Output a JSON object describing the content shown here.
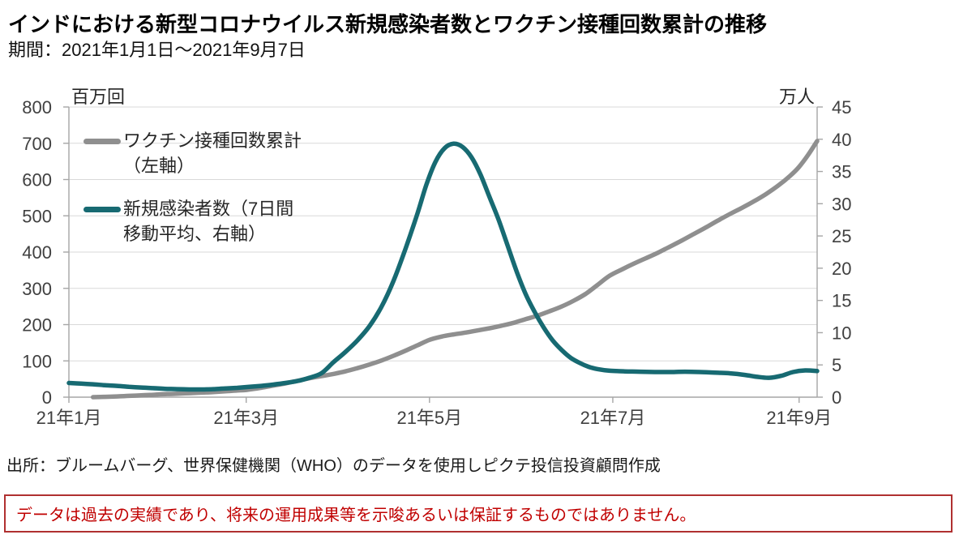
{
  "page": {
    "title": "インドにおける新型コロナウイルス新規感染者数とワクチン接種回数累計の推移",
    "subtitle": "期間：2021年1月1日～2021年9月7日",
    "source": "出所：ブルームバーグ、世界保健機関（WHO）のデータを使用しピクテ投信投資顧問作成",
    "disclaimer": "データは過去の実績であり、将来の運用成果等を示唆あるいは保証するものではありません。"
  },
  "colors": {
    "vaccine_line": "#8f8f8f",
    "cases_line": "#176a72",
    "gridline": "#d9d9d9",
    "axis_line": "#a6a6a6",
    "tick_label": "#404040",
    "disclaimer_red": "#c00000",
    "disclaimer_border": "#b03030"
  },
  "chart_data": {
    "type": "line",
    "title": "インドにおける新型コロナウイルス新規感染者数とワクチン接種回数累計の推移",
    "period": "2021-01-01 〜 2021-09-07",
    "x_unit": "days since 2021-01-01",
    "x_range_days": [
      0,
      249
    ],
    "x_tick_days": [
      0,
      59,
      120,
      181,
      243
    ],
    "x_tick_labels": [
      "21年1月",
      "21年3月",
      "21年5月",
      "21年7月",
      "21年9月"
    ],
    "grid": true,
    "legend_position": "top-left-inside",
    "left_axis": {
      "label": "百万回",
      "min": 0,
      "max": 800,
      "tick_step": 100,
      "ticks": [
        0,
        100,
        200,
        300,
        400,
        500,
        600,
        700,
        800
      ]
    },
    "right_axis": {
      "label": "万人",
      "min": 0,
      "max": 45,
      "tick_step": 5,
      "ticks": [
        0,
        5,
        10,
        15,
        20,
        25,
        30,
        35,
        40,
        45
      ]
    },
    "series": [
      {
        "name": "ワクチン接種回数累計（左軸）",
        "legend_label": "ワクチン接種回数累計\n（左軸）",
        "axis": "left",
        "unit": "百万回",
        "color": "#8f8f8f",
        "points": [
          [
            8,
            0
          ],
          [
            12,
            1
          ],
          [
            16,
            2
          ],
          [
            20,
            3.5
          ],
          [
            24,
            5
          ],
          [
            28,
            6.5
          ],
          [
            31,
            8
          ],
          [
            36,
            9.5
          ],
          [
            40,
            11
          ],
          [
            44,
            12.5
          ],
          [
            48,
            14
          ],
          [
            52,
            16
          ],
          [
            56,
            18.5
          ],
          [
            59,
            20
          ],
          [
            64,
            26
          ],
          [
            68,
            32
          ],
          [
            72,
            38
          ],
          [
            76,
            45
          ],
          [
            80,
            52
          ],
          [
            84,
            58
          ],
          [
            88,
            64
          ],
          [
            92,
            71
          ],
          [
            96,
            80
          ],
          [
            100,
            90
          ],
          [
            104,
            101
          ],
          [
            108,
            114
          ],
          [
            112,
            128
          ],
          [
            116,
            143
          ],
          [
            120,
            158
          ],
          [
            124,
            167
          ],
          [
            128,
            173
          ],
          [
            132,
            178
          ],
          [
            136,
            184
          ],
          [
            140,
            190
          ],
          [
            144,
            197
          ],
          [
            148,
            205
          ],
          [
            152,
            215
          ],
          [
            156,
            225
          ],
          [
            160,
            237
          ],
          [
            164,
            250
          ],
          [
            168,
            266
          ],
          [
            172,
            285
          ],
          [
            176,
            310
          ],
          [
            180,
            335
          ],
          [
            184,
            352
          ],
          [
            188,
            368
          ],
          [
            192,
            383
          ],
          [
            196,
            398
          ],
          [
            200,
            415
          ],
          [
            204,
            432
          ],
          [
            208,
            450
          ],
          [
            212,
            468
          ],
          [
            216,
            487
          ],
          [
            220,
            505
          ],
          [
            224,
            522
          ],
          [
            228,
            540
          ],
          [
            232,
            560
          ],
          [
            236,
            583
          ],
          [
            240,
            610
          ],
          [
            243,
            635
          ],
          [
            246,
            668
          ],
          [
            249,
            706
          ]
        ]
      },
      {
        "name": "新規感染者数（7日間移動平均、右軸）",
        "legend_label": "新規感染者数（7日間\n移動平均、右軸）",
        "axis": "right",
        "unit": "万人",
        "color": "#176a72",
        "points": [
          [
            0,
            2.2
          ],
          [
            4,
            2.1
          ],
          [
            8,
            2.0
          ],
          [
            12,
            1.85
          ],
          [
            16,
            1.75
          ],
          [
            20,
            1.6
          ],
          [
            24,
            1.5
          ],
          [
            28,
            1.4
          ],
          [
            32,
            1.3
          ],
          [
            36,
            1.25
          ],
          [
            40,
            1.2
          ],
          [
            44,
            1.2
          ],
          [
            48,
            1.25
          ],
          [
            52,
            1.35
          ],
          [
            56,
            1.45
          ],
          [
            60,
            1.6
          ],
          [
            64,
            1.75
          ],
          [
            68,
            1.95
          ],
          [
            72,
            2.2
          ],
          [
            76,
            2.5
          ],
          [
            80,
            3.0
          ],
          [
            84,
            3.7
          ],
          [
            88,
            5.4
          ],
          [
            92,
            7.0
          ],
          [
            96,
            8.8
          ],
          [
            100,
            11.0
          ],
          [
            104,
            14.0
          ],
          [
            108,
            18.0
          ],
          [
            112,
            23.0
          ],
          [
            116,
            28.5
          ],
          [
            119,
            33.0
          ],
          [
            122,
            36.5
          ],
          [
            125,
            38.6
          ],
          [
            128,
            39.3
          ],
          [
            131,
            38.8
          ],
          [
            134,
            37.2
          ],
          [
            137,
            34.5
          ],
          [
            140,
            31.0
          ],
          [
            143,
            27.5
          ],
          [
            146,
            23.5
          ],
          [
            149,
            19.5
          ],
          [
            152,
            16.0
          ],
          [
            155,
            13.2
          ],
          [
            158,
            10.8
          ],
          [
            161,
            8.8
          ],
          [
            164,
            7.3
          ],
          [
            167,
            6.1
          ],
          [
            170,
            5.3
          ],
          [
            173,
            4.7
          ],
          [
            176,
            4.35
          ],
          [
            180,
            4.1
          ],
          [
            185,
            4.0
          ],
          [
            190,
            3.95
          ],
          [
            195,
            3.9
          ],
          [
            200,
            3.9
          ],
          [
            205,
            3.95
          ],
          [
            210,
            3.9
          ],
          [
            215,
            3.8
          ],
          [
            220,
            3.7
          ],
          [
            225,
            3.45
          ],
          [
            229,
            3.15
          ],
          [
            233,
            3.0
          ],
          [
            237,
            3.3
          ],
          [
            241,
            3.9
          ],
          [
            245,
            4.15
          ],
          [
            249,
            4.05
          ]
        ]
      }
    ]
  }
}
